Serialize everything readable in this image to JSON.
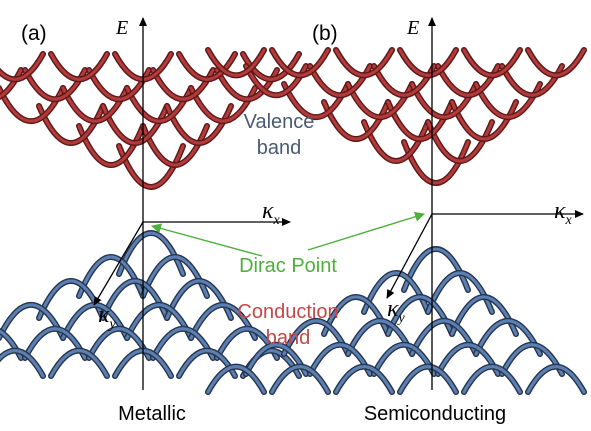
{
  "panels": [
    {
      "tag": "(a)",
      "caption": "Metallic"
    },
    {
      "tag": "(b)",
      "caption": "Semiconducting"
    }
  ],
  "axes": {
    "energy": "E",
    "kappa": "κ",
    "sub_x": "x",
    "sub_y": "y"
  },
  "annotations": {
    "valence_line1": "Valence",
    "valence_line2": "band",
    "dirac": "Dirac Point",
    "conduction_line1": "Conduction",
    "conduction_line2": "band"
  },
  "colors": {
    "valence_band": "#b23a3a",
    "valence_band_dark": "#5a1818",
    "conduction_band": "#5b7fb0",
    "conduction_band_dark": "#26344d",
    "valence_text": "#4a5a72",
    "dirac_text": "#4fae3c",
    "conduction_text": "#c34848",
    "axis": "#000000"
  }
}
